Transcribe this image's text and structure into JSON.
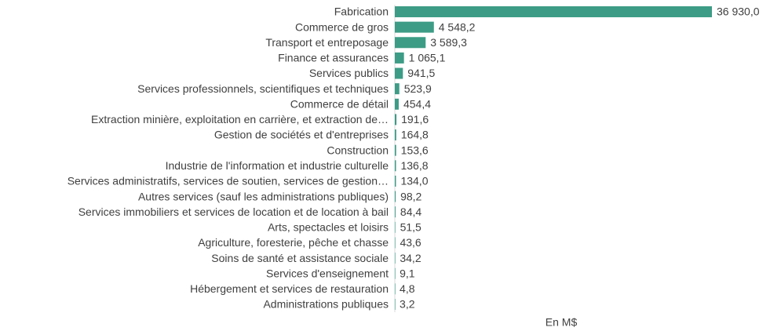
{
  "chart_data": {
    "type": "bar",
    "orientation": "horizontal",
    "x_label": "En M$",
    "color": "#3d9c85",
    "categories": [
      "Fabrication",
      "Commerce de gros",
      "Transport et entreposage",
      "Finance et assurances",
      "Services publics",
      "Services professionnels, scientifiques et techniques",
      "Commerce de détail",
      "Extraction minière, exploitation en carrière, et extraction de…",
      "Gestion de sociétés et d'entreprises",
      "Construction",
      "Industrie de l'information et industrie culturelle",
      "Services administratifs, services de soutien, services de gestion…",
      "Autres services (sauf les administrations publiques)",
      "Services immobiliers et services de location et de location à bail",
      "Arts, spectacles et loisirs",
      "Agriculture, foresterie, pêche et chasse",
      "Soins de santé et assistance sociale",
      "Services d'enseignement",
      "Hébergement et services de restauration",
      "Administrations publiques"
    ],
    "values": [
      36930.0,
      4548.2,
      3589.3,
      1065.1,
      941.5,
      523.9,
      454.4,
      191.6,
      164.8,
      153.6,
      136.8,
      134.0,
      98.2,
      84.4,
      51.5,
      43.6,
      34.2,
      9.1,
      4.8,
      3.2
    ],
    "value_labels": [
      "36 930,0",
      "4 548,2",
      "3 589,3",
      "1 065,1",
      "941,5",
      "523,9",
      "454,4",
      "191,6",
      "164,8",
      "153,6",
      "136,8",
      "134,0",
      "98,2",
      "84,4",
      "51,5",
      "43,6",
      "34,2",
      "9,1",
      "4,8",
      "3,2"
    ],
    "xlim": [
      0,
      36930
    ]
  }
}
